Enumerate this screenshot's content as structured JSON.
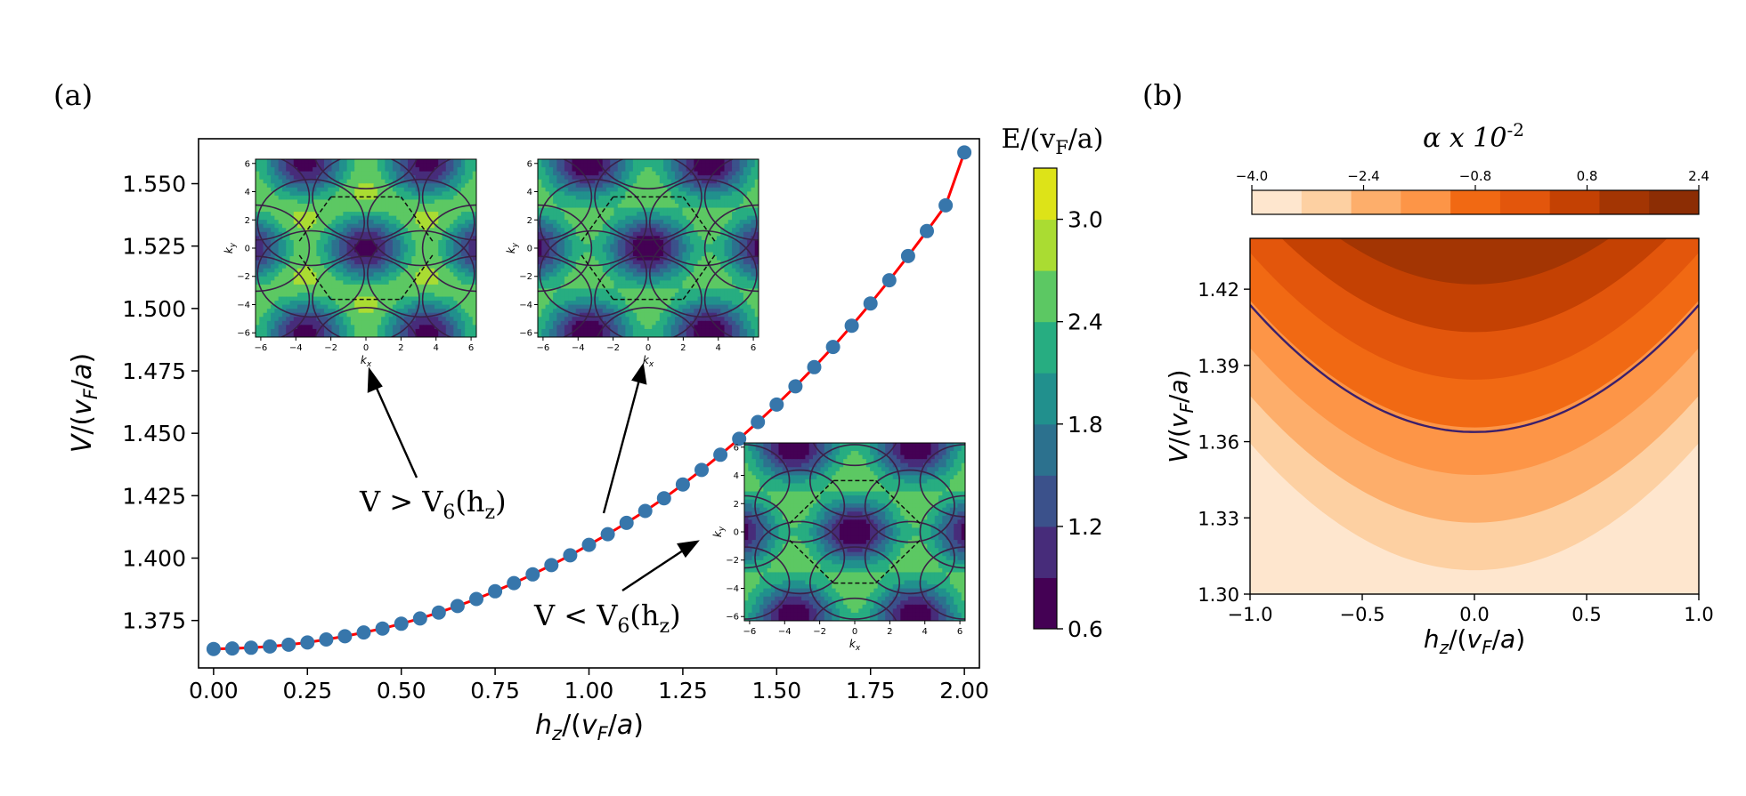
{
  "panel_labels": {
    "a": "(a)",
    "b": "(b)"
  },
  "chart_data": [
    {
      "type": "scatter",
      "panel": "(a)",
      "title": "",
      "xlabel_html": "h<tspan font-style='italic'>z</tspan>",
      "xlabel": "h_z/(v_F/a)",
      "ylabel": "V/(v_F/a)",
      "xlim": [
        -0.04,
        2.04
      ],
      "ylim": [
        1.356,
        1.568
      ],
      "xticks": [
        0.0,
        0.25,
        0.5,
        0.75,
        1.0,
        1.25,
        1.5,
        1.75,
        2.0
      ],
      "xtick_labels": [
        "0.00",
        "0.25",
        "0.50",
        "0.75",
        "1.00",
        "1.25",
        "1.50",
        "1.75",
        "2.00"
      ],
      "yticks": [
        1.375,
        1.4,
        1.425,
        1.45,
        1.475,
        1.5,
        1.525,
        1.55
      ],
      "ytick_labels": [
        "1.375",
        "1.400",
        "1.425",
        "1.450",
        "1.475",
        "1.500",
        "1.525",
        "1.550"
      ],
      "series": [
        {
          "name": "numerical points",
          "color": "#3776ab",
          "x": [
            0.0,
            0.05,
            0.1,
            0.15,
            0.2,
            0.25,
            0.3,
            0.35,
            0.4,
            0.45,
            0.5,
            0.55,
            0.6,
            0.65,
            0.7,
            0.75,
            0.8,
            0.85,
            0.9,
            0.95,
            1.0,
            1.05,
            1.1,
            1.15,
            1.2,
            1.25,
            1.3,
            1.35,
            1.4,
            1.45,
            1.5,
            1.55,
            1.6,
            1.65,
            1.7,
            1.75,
            1.8,
            1.85,
            1.9,
            1.95,
            2.0
          ],
          "y": [
            1.3636,
            1.3638,
            1.3641,
            1.3646,
            1.3653,
            1.3662,
            1.3674,
            1.3687,
            1.3702,
            1.3718,
            1.3737,
            1.3758,
            1.3782,
            1.3808,
            1.3836,
            1.3867,
            1.39,
            1.3935,
            1.3972,
            1.4011,
            1.4053,
            1.4096,
            1.4141,
            1.4189,
            1.424,
            1.4295,
            1.4353,
            1.4414,
            1.4478,
            1.4545,
            1.4615,
            1.4688,
            1.4765,
            1.4846,
            1.4931,
            1.502,
            1.5113,
            1.521,
            1.531,
            1.5413,
            1.5625
          ]
        },
        {
          "name": "fit",
          "color": "#ff0000",
          "x": [
            0.0,
            0.05,
            0.1,
            0.15,
            0.2,
            0.25,
            0.3,
            0.35,
            0.4,
            0.45,
            0.5,
            0.55,
            0.6,
            0.65,
            0.7,
            0.75,
            0.8,
            0.85,
            0.9,
            0.95,
            1.0,
            1.05,
            1.1,
            1.15,
            1.2,
            1.25,
            1.3,
            1.35,
            1.4,
            1.45,
            1.5,
            1.55,
            1.6,
            1.65,
            1.7,
            1.75,
            1.8,
            1.85,
            1.9,
            1.95,
            2.0
          ],
          "y": [
            1.3636,
            1.3638,
            1.3641,
            1.3646,
            1.3653,
            1.3662,
            1.3674,
            1.3687,
            1.3702,
            1.3718,
            1.3737,
            1.3758,
            1.3782,
            1.3808,
            1.3836,
            1.3867,
            1.39,
            1.3935,
            1.3972,
            1.4011,
            1.4053,
            1.4096,
            1.4141,
            1.4189,
            1.424,
            1.4295,
            1.4353,
            1.4414,
            1.4478,
            1.4545,
            1.4615,
            1.4688,
            1.4765,
            1.4846,
            1.4931,
            1.502,
            1.5113,
            1.521,
            1.531,
            1.5413,
            1.5625
          ]
        }
      ],
      "annotations": [
        {
          "text": "V > V",
          "sub": "6",
          "suffix": "(h",
          "sub2": "z",
          "end": ")"
        },
        {
          "text": "V < V",
          "sub": "6",
          "suffix": "(h",
          "sub2": "z",
          "end": ")"
        }
      ],
      "insets": {
        "xlabel": "k",
        "xlabel_sub": "x",
        "ylabel": "k",
        "ylabel_sub": "y",
        "ticks": [
          -6,
          -4,
          -2,
          0,
          2,
          4,
          6
        ],
        "tick_labels": [
          "−6",
          "−4",
          "−2",
          "0",
          "2",
          "4",
          "6"
        ],
        "lim": [
          -6.3,
          6.3
        ]
      },
      "colorbar": {
        "title": "E/(v",
        "title_sub": "F",
        "title_end": "/a)",
        "range": [
          0.6,
          3.3
        ],
        "ticks": [
          0.6,
          1.2,
          1.8,
          2.4,
          3.0
        ],
        "tick_labels": [
          "0.6",
          "1.2",
          "1.8",
          "2.4",
          "3.0"
        ],
        "colors": [
          "#440154",
          "#472c7a",
          "#3b518b",
          "#2c718e",
          "#21908d",
          "#27ad81",
          "#5cc863",
          "#aadc32",
          "#dde318"
        ]
      }
    },
    {
      "type": "heatmap",
      "panel": "(b)",
      "title": "α x 10",
      "title_sup": "-2",
      "xlabel": "h_z/(v_F/a)",
      "ylabel": "V/(v_F/a)",
      "xlim": [
        -1.0,
        1.0
      ],
      "ylim": [
        1.3,
        1.44
      ],
      "xticks": [
        -1.0,
        -0.5,
        0.0,
        0.5,
        1.0
      ],
      "xtick_labels": [
        "−1.0",
        "−0.5",
        "0.0",
        "0.5",
        "1.0"
      ],
      "yticks": [
        1.3,
        1.33,
        1.36,
        1.39,
        1.42
      ],
      "ytick_labels": [
        "1.30",
        "1.33",
        "1.36",
        "1.39",
        "1.42"
      ],
      "contour_levels": [
        -4.0,
        -3.2,
        -2.4,
        -1.6,
        -0.8,
        0.0,
        0.8,
        1.6,
        2.4
      ],
      "colorbar_ticks": [
        -4.0,
        -2.4,
        -0.8,
        0.8,
        2.4
      ],
      "colorbar_tick_labels": [
        "−4.0",
        "−2.4",
        "−0.8",
        "0.8",
        "2.4"
      ],
      "colors": [
        "#fee6ce",
        "#fdd0a2",
        "#fdae6b",
        "#fd9547",
        "#f16913",
        "#e3560c",
        "#c44103",
        "#a33503",
        "#8c2d04"
      ],
      "boundaries_at_center": [
        1.3094,
        1.3281,
        1.3469,
        1.3656,
        1.3844,
        1.4031,
        1.4219,
        1.4406
      ],
      "curvature": 0.05,
      "zero_line": {
        "level": 0.0,
        "center": 1.3638,
        "color": "#3b1f6b"
      }
    }
  ]
}
